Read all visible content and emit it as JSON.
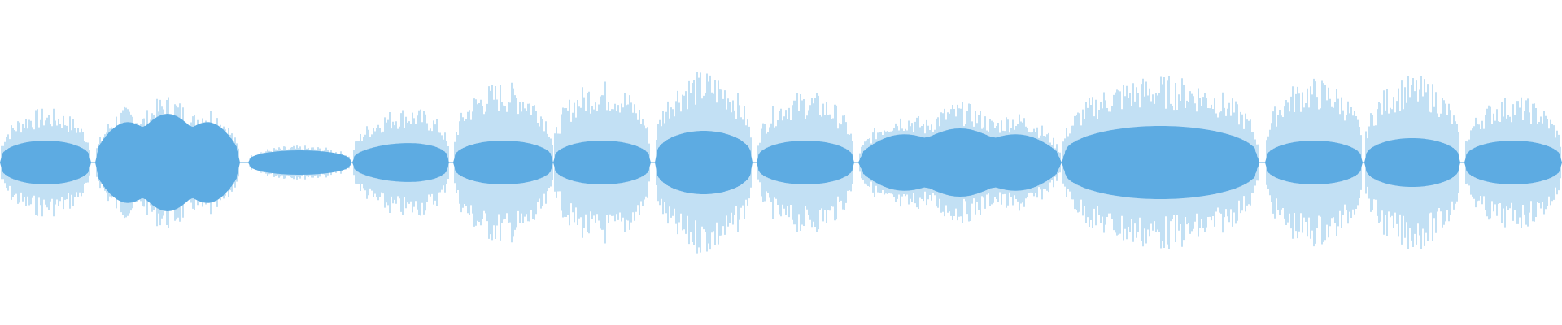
{
  "waveform": {
    "colors": {
      "background": "#ffffff",
      "wave": "#5dabe2",
      "wave_core": "#5dabe2"
    },
    "segments": [
      {
        "peak": 0.45,
        "core": 0.18,
        "shape": "flat"
      },
      {
        "peak": 0.56,
        "core": 0.4,
        "shape": "double"
      },
      {
        "peak": 0.14,
        "core": 0.1,
        "shape": "flat"
      },
      {
        "peak": 0.52,
        "core": 0.18,
        "shape": "rise"
      },
      {
        "peak": 0.67,
        "core": 0.18,
        "shape": "flat"
      },
      {
        "peak": 0.68,
        "core": 0.18,
        "shape": "flat"
      },
      {
        "peak": 0.76,
        "core": 0.26,
        "shape": "flat"
      },
      {
        "peak": 0.59,
        "core": 0.18,
        "shape": "flat"
      },
      {
        "peak": 0.5,
        "core": 0.28,
        "shape": "double"
      },
      {
        "peak": 0.72,
        "core": 0.3,
        "shape": "flat"
      },
      {
        "peak": 0.7,
        "core": 0.18,
        "shape": "flat"
      },
      {
        "peak": 0.72,
        "core": 0.2,
        "shape": "flat"
      },
      {
        "peak": 0.55,
        "core": 0.18,
        "shape": "flat"
      },
      {
        "peak": 0.74,
        "core": 0.45,
        "shape": "rise"
      }
    ]
  }
}
